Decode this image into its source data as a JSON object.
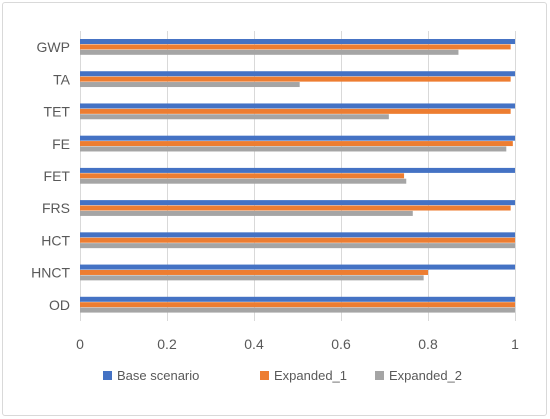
{
  "chart_data": {
    "type": "bar",
    "orientation": "horizontal",
    "title": "",
    "xlabel": "",
    "ylabel": "",
    "categories": [
      "GWP",
      "TA",
      "TET",
      "FE",
      "FET",
      "FRS",
      "HCT",
      "HNCT",
      "OD"
    ],
    "series": [
      {
        "name": "Base scenario",
        "color": "#4472C4",
        "values": [
          1,
          1,
          1,
          1,
          1,
          1,
          1,
          1,
          1
        ]
      },
      {
        "name": "Expanded_1",
        "color": "#ED7D31",
        "values": [
          0.99,
          0.99,
          0.99,
          0.995,
          0.745,
          0.99,
          1,
          0.8,
          1
        ]
      },
      {
        "name": "Expanded_2",
        "color": "#A5A5A5",
        "values": [
          0.87,
          0.505,
          0.71,
          0.98,
          0.75,
          0.765,
          1,
          0.79,
          1
        ]
      }
    ],
    "xlim": [
      0,
      1
    ],
    "xticks": [
      "0",
      "0.2",
      "0.4",
      "0.6",
      "0.8",
      "1"
    ],
    "xtick_values": [
      0,
      0.2,
      0.4,
      0.6,
      0.8,
      1
    ],
    "grid": true,
    "legend_position": "bottom"
  }
}
